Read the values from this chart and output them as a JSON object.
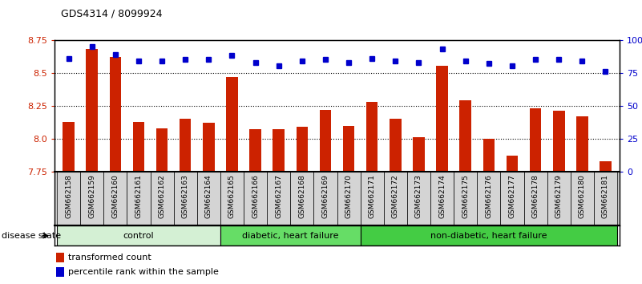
{
  "title": "GDS4314 / 8099924",
  "samples": [
    "GSM662158",
    "GSM662159",
    "GSM662160",
    "GSM662161",
    "GSM662162",
    "GSM662163",
    "GSM662164",
    "GSM662165",
    "GSM662166",
    "GSM662167",
    "GSM662168",
    "GSM662169",
    "GSM662170",
    "GSM662171",
    "GSM662172",
    "GSM662173",
    "GSM662174",
    "GSM662175",
    "GSM662176",
    "GSM662177",
    "GSM662178",
    "GSM662179",
    "GSM662180",
    "GSM662181"
  ],
  "bar_values": [
    8.13,
    8.68,
    8.62,
    8.13,
    8.08,
    8.15,
    8.12,
    8.47,
    8.07,
    8.07,
    8.09,
    8.22,
    8.1,
    8.28,
    8.15,
    8.01,
    8.55,
    8.29,
    8.0,
    7.87,
    8.23,
    8.21,
    8.17,
    7.83
  ],
  "blue_values": [
    86,
    95,
    89,
    84,
    84,
    85,
    85,
    88,
    83,
    80,
    84,
    85,
    83,
    86,
    84,
    83,
    93,
    84,
    82,
    80,
    85,
    85,
    84,
    76
  ],
  "groups": [
    {
      "label": "control",
      "start": 0,
      "end": 7
    },
    {
      "label": "diabetic, heart failure",
      "start": 7,
      "end": 13
    },
    {
      "label": "non-diabetic, heart failure",
      "start": 13,
      "end": 24
    }
  ],
  "group_colors": [
    "#d4f0d4",
    "#66dd66",
    "#44cc44"
  ],
  "ylim_left": [
    7.75,
    8.75
  ],
  "ylim_right": [
    0,
    100
  ],
  "yticks_left": [
    7.75,
    8.0,
    8.25,
    8.5,
    8.75
  ],
  "yticks_right": [
    0,
    25,
    50,
    75,
    100
  ],
  "bar_color": "#cc2200",
  "blue_color": "#0000cc",
  "plot_bg_color": "#ffffff",
  "tick_label_bg": "#d0d0d0",
  "legend_bar_label": "transformed count",
  "legend_blue_label": "percentile rank within the sample",
  "disease_state_label": "disease state"
}
